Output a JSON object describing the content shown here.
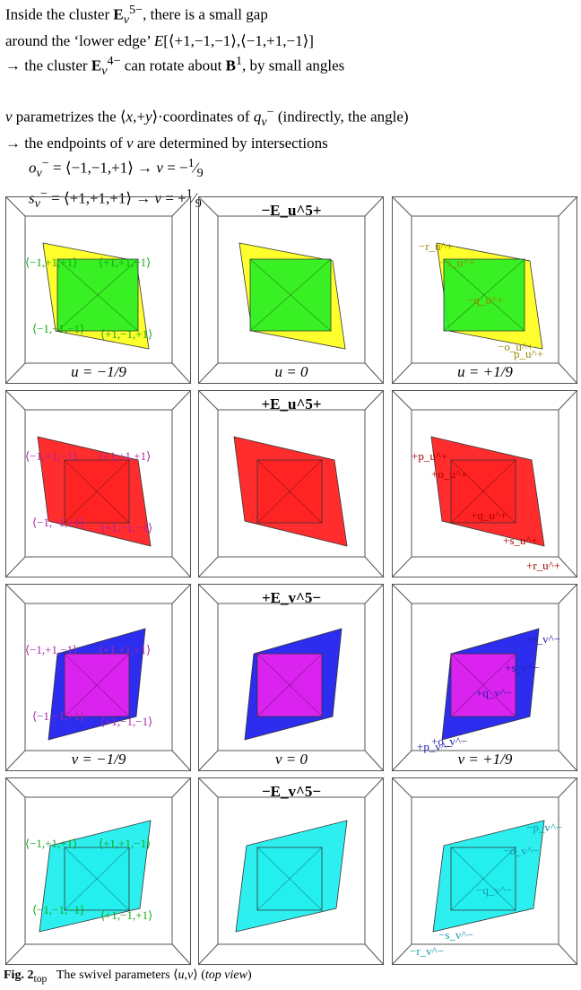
{
  "intro": {
    "line1": "Inside the cluster E_v^5−, there is a small gap",
    "line2": "around the ‘lower edge’ E[⟨+1,−1,−1⟩,⟨−1,+1,−1⟩]",
    "line3": "→ the cluster E_v^4− can rotate about B^1, by small angles",
    "line4": "v parametrizes the ⟨x,+y⟩·coordinates of q_v^− (indirectly, the angle)",
    "line5": "→ the endpoints of v are determined by intersections",
    "line6": "o_v^− = ⟨−1,−1,+1⟩ → v = −1/9",
    "line7": "s_v^− = ⟨+1,+1,+1⟩ → v = +1/9"
  },
  "rows": [
    {
      "title": "−E_u^5+",
      "panels": [
        {
          "param": "u = −1/9",
          "labels": [
            "⟨−1,+1,+1⟩",
            "⟨+1,+1,−1⟩",
            "⟨−1,−1,−1⟩",
            "⟨+1,−1,+1⟩"
          ]
        },
        {
          "param": "u = 0",
          "labels": []
        },
        {
          "param": "u = +1/9",
          "labels": [
            "−r_u^+",
            "−s_u^+",
            "−q_u^+",
            "−o_u^+",
            "p_u^+"
          ]
        }
      ]
    },
    {
      "title": "+E_u^5+",
      "panels": [
        {
          "param": "",
          "labels": [
            "⟨−1,+1,−1⟩",
            "⟨+1,+1,+1⟩",
            "⟨−1,−1,+1⟩",
            "⟨+1,−1,−1⟩"
          ]
        },
        {
          "param": "",
          "labels": []
        },
        {
          "param": "",
          "labels": [
            "+p_u^+",
            "+o_u^+",
            "+q_u^+",
            "+s_u^+",
            "+r_u^+"
          ]
        }
      ]
    },
    {
      "title": "+E_v^5−",
      "panels": [
        {
          "param": "v = −1/9",
          "labels": [
            "⟨−1,+1,−1⟩",
            "⟨+1,+1,+1⟩",
            "⟨−1,−1,+1⟩",
            "⟨+1,−1,−1⟩"
          ]
        },
        {
          "param": "v = 0",
          "labels": []
        },
        {
          "param": "v = +1/9",
          "labels": [
            "+r_v^−",
            "+s_v^−",
            "+q_v^−",
            "+o_v^−",
            "+p_v^−"
          ]
        }
      ]
    },
    {
      "title": "−E_v^5−",
      "panels": [
        {
          "param": "",
          "labels": [
            "⟨−1,+1,+1⟩",
            "⟨+1,+1,−1⟩",
            "⟨−1,−1,−1⟩",
            "⟨+1,−1,+1⟩"
          ]
        },
        {
          "param": "",
          "labels": []
        },
        {
          "param": "",
          "labels": [
            "−p_v^−",
            "−o_v^−",
            "−q_v^−",
            "−s_v^−",
            "−r_v^−"
          ]
        }
      ]
    }
  ],
  "caption": {
    "figno": "Fig. 2_top",
    "text": "The swivel parameters ⟨u,v⟩ (top view)"
  },
  "colors": {
    "row1_outer": "#ffff22",
    "row1_inner": "#22ee22",
    "row1_labels": "#11aa11",
    "row1_right_labels": "#998800",
    "row2_outer": "#ff2222",
    "row2_inner": "#ff2222",
    "row2_labels": "#aa22aa",
    "row2_right_labels": "#aa0000",
    "row3_outer": "#2222ee",
    "row3_inner": "#ee22ee",
    "row3_labels": "#aa22aa",
    "row3_right_labels": "#2222aa",
    "row4_outer": "#22eeee",
    "row4_inner": "#22eeee",
    "row4_labels": "#11aa11",
    "row4_right_labels": "#1199aa"
  }
}
